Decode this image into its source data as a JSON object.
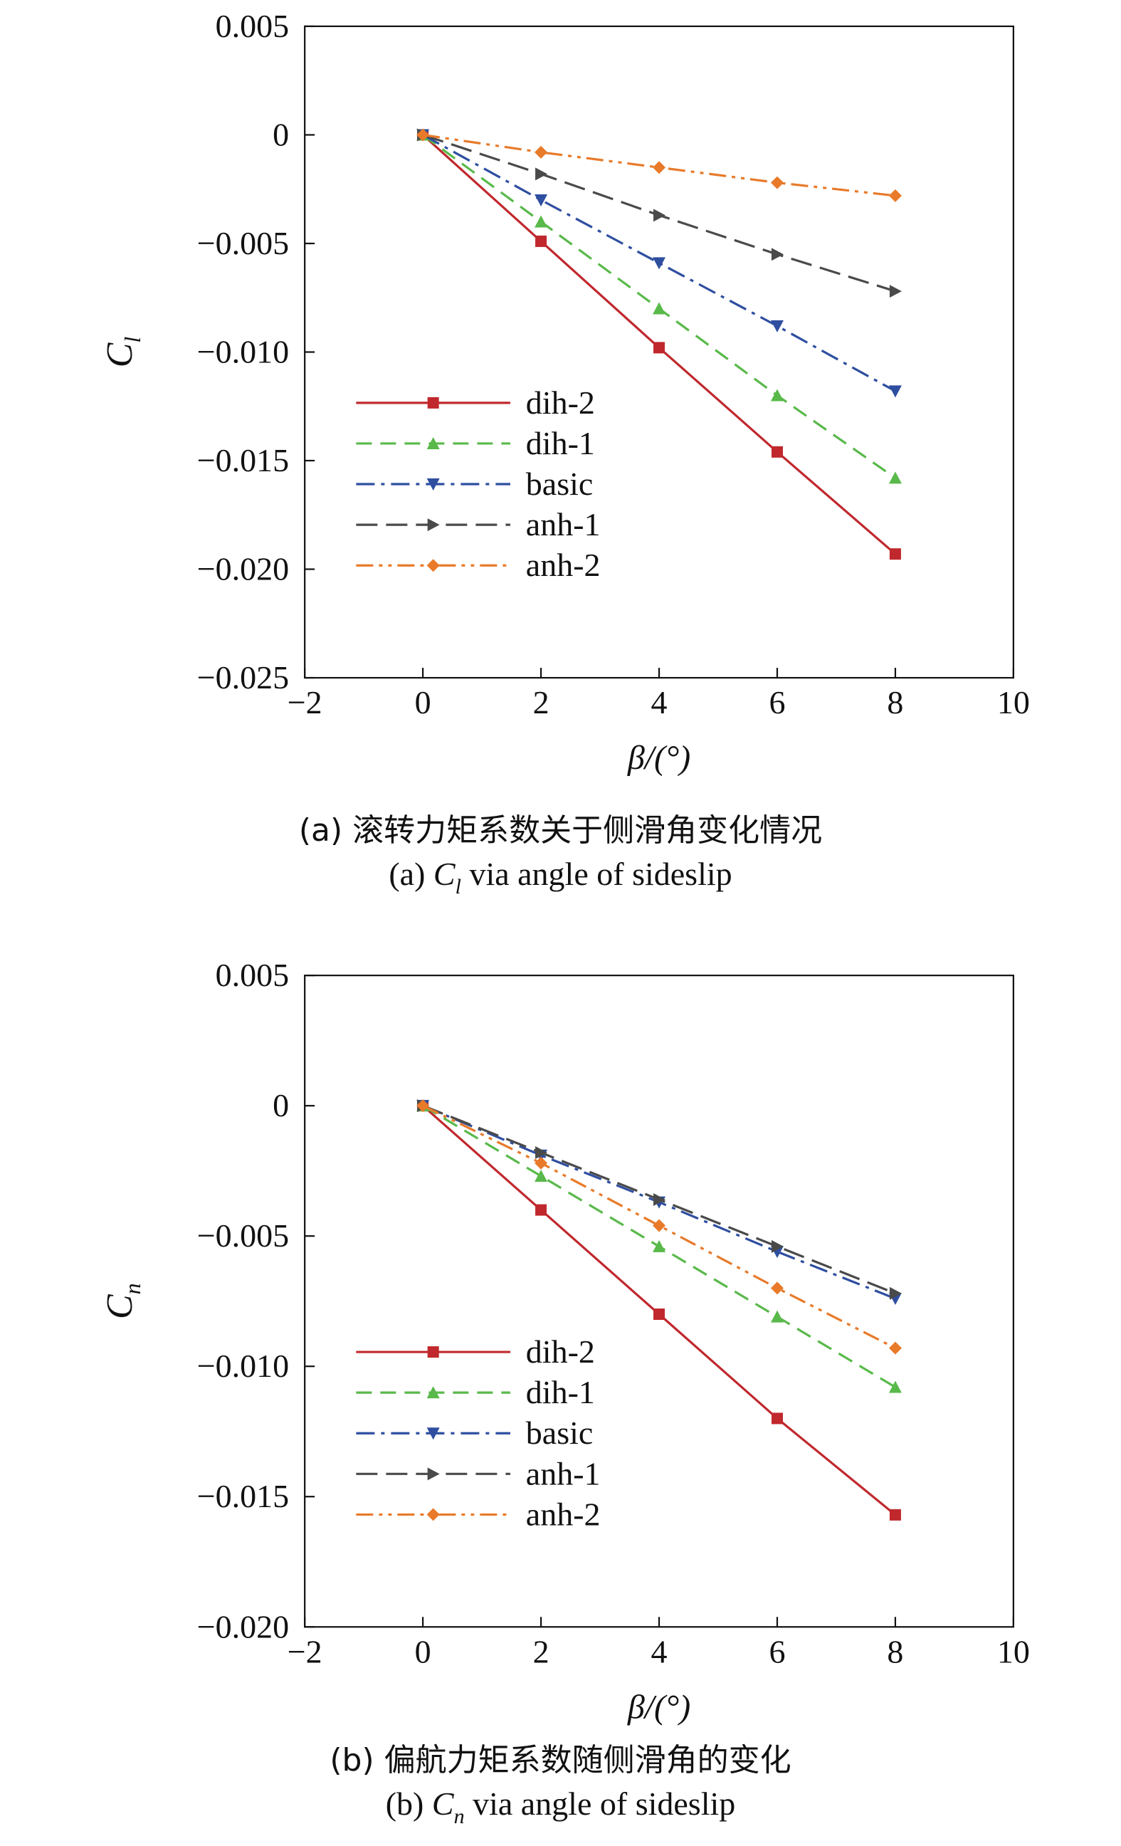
{
  "chart_data": [
    {
      "type": "line",
      "caption_cn": "(a) 滚转力矩系数关于侧滑角变化情况",
      "caption_en_prefix": "(a) ",
      "caption_en_symbol": "C",
      "caption_en_subscript": "l",
      "caption_en_suffix": " via angle of sideslip",
      "ylabel_symbol": "C",
      "ylabel_subscript": "l",
      "xlabel": "β/(°)",
      "xlim": [
        -2,
        10
      ],
      "ylim": [
        -0.025,
        0.005
      ],
      "xticks": [
        -2,
        0,
        2,
        4,
        6,
        8,
        10
      ],
      "xtick_labels": [
        "−2",
        "0",
        "2",
        "4",
        "6",
        "8",
        "10"
      ],
      "yticks": [
        0.005,
        0,
        -0.005,
        -0.01,
        -0.015,
        -0.02,
        -0.025
      ],
      "ytick_labels": [
        "0.005",
        "0",
        "−0.005",
        "−0.010",
        "−0.015",
        "−0.020",
        "−0.025"
      ],
      "grid": false,
      "legend_position": "left-middle",
      "x": [
        0,
        2,
        4,
        6,
        8
      ],
      "series": [
        {
          "name": "dih-2",
          "values": [
            0,
            -0.0049,
            -0.0098,
            -0.0146,
            -0.0193
          ],
          "color": "#c0282d",
          "dash": "solid",
          "marker": "square"
        },
        {
          "name": "dih-1",
          "values": [
            0,
            -0.004,
            -0.008,
            -0.012,
            -0.0158
          ],
          "color": "#59b94a",
          "dash": "dash",
          "marker": "triangle-up"
        },
        {
          "name": "basic",
          "values": [
            0,
            -0.003,
            -0.0059,
            -0.0088,
            -0.0118
          ],
          "color": "#2e4ea0",
          "dash": "dashdot",
          "marker": "triangle-down"
        },
        {
          "name": "anh-1",
          "values": [
            0,
            -0.0018,
            -0.0037,
            -0.0055,
            -0.0072
          ],
          "color": "#4a4a4a",
          "dash": "longdash",
          "marker": "triangle-right"
        },
        {
          "name": "anh-2",
          "values": [
            0,
            -0.0008,
            -0.0015,
            -0.0022,
            -0.0028
          ],
          "color": "#e87a2a",
          "dash": "dashdotdot",
          "marker": "diamond"
        }
      ]
    },
    {
      "type": "line",
      "caption_cn": "(b) 偏航力矩系数随侧滑角的变化",
      "caption_en_prefix": "(b) ",
      "caption_en_symbol": "C",
      "caption_en_subscript": "n",
      "caption_en_suffix": " via angle of sideslip",
      "ylabel_symbol": "C",
      "ylabel_subscript": "n",
      "xlabel": "β/(°)",
      "xlim": [
        -2,
        10
      ],
      "ylim": [
        -0.02,
        0.005
      ],
      "xticks": [
        -2,
        0,
        2,
        4,
        6,
        8,
        10
      ],
      "xtick_labels": [
        "−2",
        "0",
        "2",
        "4",
        "6",
        "8",
        "10"
      ],
      "yticks": [
        0.005,
        0,
        -0.005,
        -0.01,
        -0.015,
        -0.02
      ],
      "ytick_labels": [
        "0.005",
        "0",
        "−0.005",
        "−0.010",
        "−0.015",
        "−0.020"
      ],
      "grid": false,
      "legend_position": "left-bottom",
      "x": [
        0,
        2,
        4,
        6,
        8
      ],
      "series": [
        {
          "name": "dih-2",
          "values": [
            0,
            -0.004,
            -0.008,
            -0.012,
            -0.0157
          ],
          "color": "#c0282d",
          "dash": "solid",
          "marker": "square"
        },
        {
          "name": "dih-1",
          "values": [
            0,
            -0.0027,
            -0.0054,
            -0.0081,
            -0.0108
          ],
          "color": "#59b94a",
          "dash": "dash",
          "marker": "triangle-up"
        },
        {
          "name": "basic",
          "values": [
            0,
            -0.0019,
            -0.0037,
            -0.0056,
            -0.0074
          ],
          "color": "#2e4ea0",
          "dash": "dashdot",
          "marker": "triangle-down"
        },
        {
          "name": "anh-1",
          "values": [
            0,
            -0.0018,
            -0.0036,
            -0.0054,
            -0.0072
          ],
          "color": "#4a4a4a",
          "dash": "longdash",
          "marker": "triangle-right"
        },
        {
          "name": "anh-2",
          "values": [
            0,
            -0.0022,
            -0.0046,
            -0.007,
            -0.0093
          ],
          "color": "#e87a2a",
          "dash": "dashdotdot",
          "marker": "diamond"
        }
      ]
    }
  ]
}
